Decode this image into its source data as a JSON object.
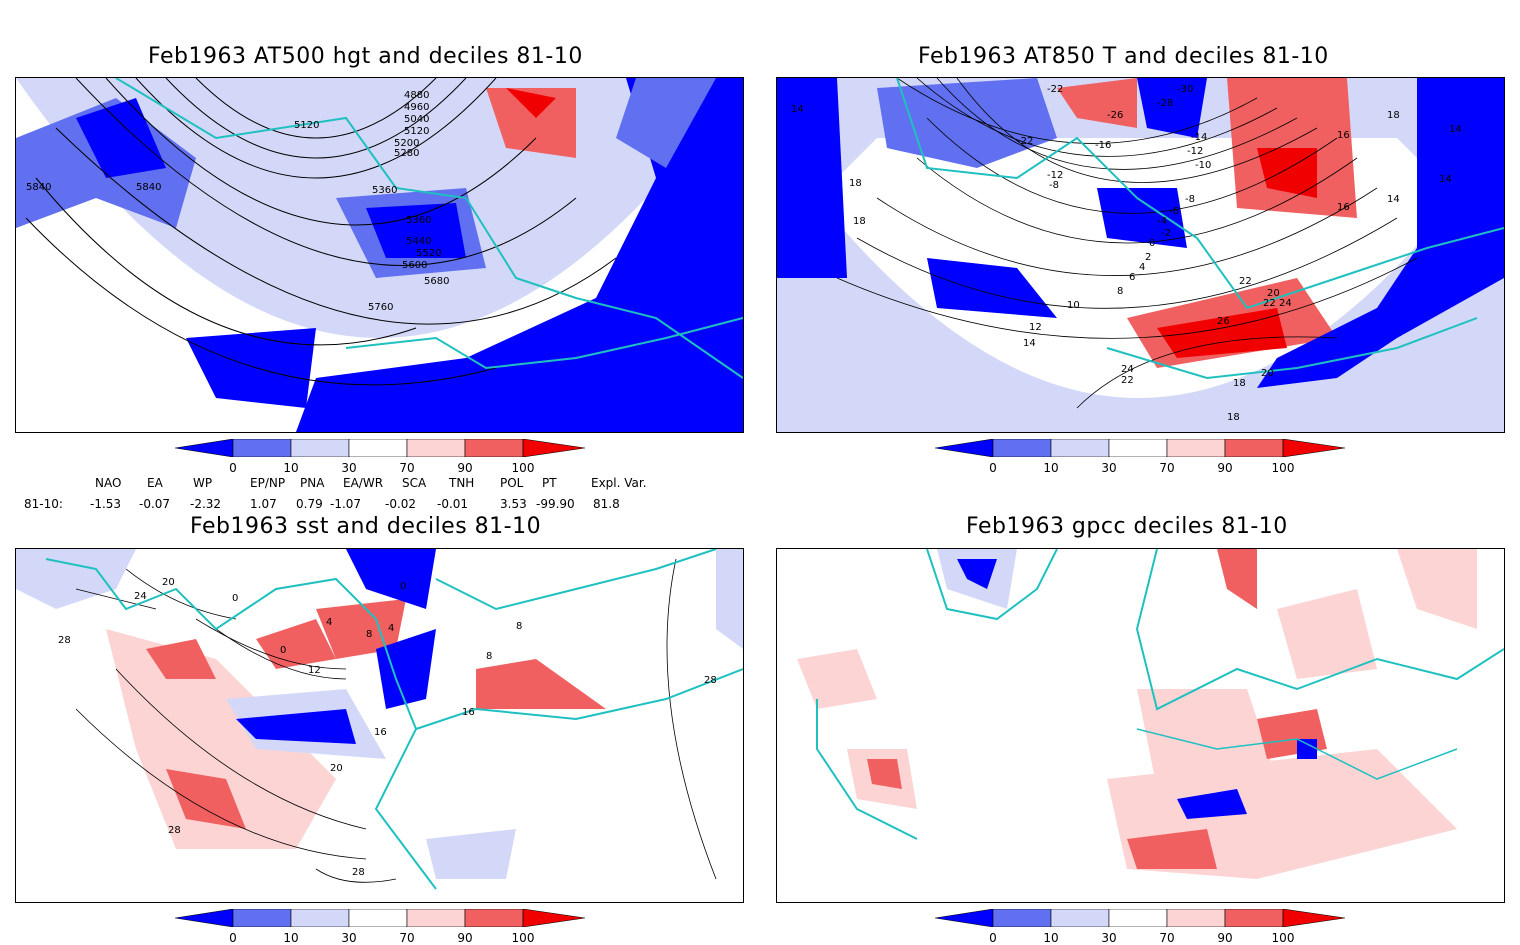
{
  "panels": [
    {
      "title": "Feb1963 AT500 hgt and deciles 81-10",
      "contour_labels": [
        "5120",
        "4880",
        "4960",
        "5040",
        "5120",
        "5200",
        "5280",
        "5360",
        "5360",
        "5440",
        "5520",
        "5600",
        "5680",
        "5760",
        "5840",
        "5840"
      ]
    },
    {
      "title": "Feb1963 AT850 T and deciles 81-10",
      "contour_labels": [
        "-22",
        "-28",
        "-30",
        "-26",
        "-22",
        "-16",
        "-12",
        "-8",
        "-14",
        "-12",
        "-10",
        "-8",
        "-6",
        "-4",
        "-2",
        "0",
        "2",
        "4",
        "6",
        "8",
        "10",
        "12",
        "14",
        "14",
        "16",
        "18",
        "18",
        "14",
        "14",
        "16",
        "18",
        "20",
        "22",
        "24",
        "26",
        "22",
        "24",
        "22",
        "20",
        "18",
        "18",
        "14"
      ]
    },
    {
      "title": "Feb1963 sst and deciles 81-10",
      "contour_labels": [
        "20",
        "24",
        "28",
        "0",
        "0",
        "0",
        "4",
        "8",
        "4",
        "12",
        "16",
        "20",
        "28",
        "28",
        "16",
        "8",
        "8",
        "28"
      ]
    },
    {
      "title": "Feb1963 gpcc deciles 81-10",
      "contour_labels": []
    }
  ],
  "colorbar": {
    "labels": [
      "0",
      "10",
      "30",
      "70",
      "90",
      "100"
    ],
    "colors": [
      "#0000ff",
      "#6070f0",
      "#d4d8f8",
      "#ffffff",
      "#fcd4d4",
      "#f06060",
      "#f00000"
    ]
  },
  "indices": {
    "row_label": "81-10:",
    "headers": [
      "NAO",
      "EA",
      "WP",
      "EP/NP",
      "PNA",
      "EA/WR",
      "SCA",
      "TNH",
      "POL",
      "PT",
      "Expl. Var."
    ],
    "values": [
      "-1.53",
      "-0.07",
      "-2.32",
      "1.07",
      "0.79",
      "-1.07",
      "-0.02",
      "-0.01",
      "3.53",
      "-99.90",
      "81.8"
    ]
  },
  "colors": {
    "coast": "#1fc0c0",
    "contour": "#000000"
  }
}
